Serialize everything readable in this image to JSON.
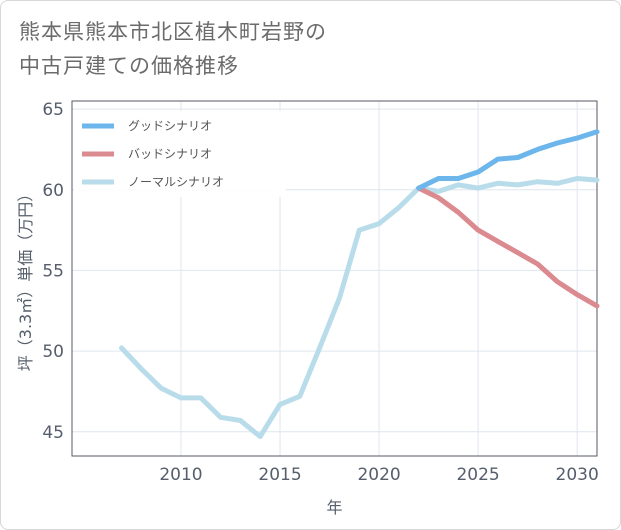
{
  "title": {
    "line1": "熊本県熊本市北区植木町岩野の",
    "line2": "中古戸建ての価格推移"
  },
  "chart_data": {
    "type": "line",
    "xlabel": "年",
    "ylabel": "坪（3.3㎡）単価（万円）",
    "xlim": [
      2004.5,
      2031
    ],
    "ylim": [
      43.5,
      65.5
    ],
    "xticks": [
      2010,
      2015,
      2020,
      2025,
      2030
    ],
    "yticks": [
      45,
      50,
      55,
      60,
      65
    ],
    "grid": true,
    "legend_position": "top-left",
    "series": [
      {
        "name": "グッドシナリオ",
        "color": "#6cb6ec",
        "x": [
          2022,
          2023,
          2024,
          2025,
          2026,
          2027,
          2028,
          2029,
          2030,
          2031
        ],
        "y": [
          60.1,
          60.7,
          60.7,
          61.1,
          61.9,
          62.0,
          62.5,
          62.9,
          63.2,
          63.6
        ]
      },
      {
        "name": "バッドシナリオ",
        "color": "#db8a8f",
        "x": [
          2022,
          2023,
          2024,
          2025,
          2026,
          2027,
          2028,
          2029,
          2030,
          2031
        ],
        "y": [
          60.1,
          59.5,
          58.6,
          57.5,
          56.8,
          56.1,
          55.4,
          54.3,
          53.5,
          52.8
        ]
      },
      {
        "name": "ノーマルシナリオ",
        "color": "#b9dcea",
        "x": [
          2007,
          2008,
          2009,
          2010,
          2011,
          2012,
          2013,
          2014,
          2015,
          2016,
          2017,
          2018,
          2019,
          2020,
          2021,
          2022,
          2023,
          2024,
          2025,
          2026,
          2027,
          2028,
          2029,
          2030,
          2031
        ],
        "y": [
          50.2,
          48.9,
          47.7,
          47.1,
          47.1,
          45.9,
          45.7,
          44.7,
          46.7,
          47.2,
          50.2,
          53.3,
          57.5,
          57.9,
          58.9,
          60.1,
          59.9,
          60.3,
          60.1,
          60.4,
          60.3,
          60.5,
          60.4,
          60.7,
          60.6
        ]
      }
    ]
  }
}
